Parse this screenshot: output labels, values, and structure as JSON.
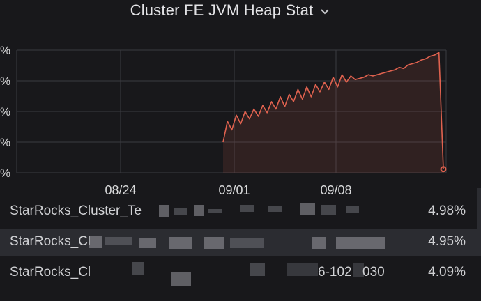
{
  "panel": {
    "title": "Cluster FE JVM Heap Stat",
    "menu_icon": "chevron-down-icon"
  },
  "chart_data": {
    "type": "area",
    "title": "Cluster FE JVM Heap Stat",
    "x_ticks": [
      "08/24",
      "09/01",
      "09/08"
    ],
    "y_ticks": [
      "%",
      "%",
      "%",
      "%",
      "%"
    ],
    "series": [
      {
        "color": "#e0624f",
        "x": [
          0,
          2,
          4,
          6,
          8,
          10,
          12,
          14,
          16,
          18,
          20,
          22,
          24,
          26,
          28,
          30,
          32,
          34,
          36,
          38,
          40,
          42,
          44,
          46,
          48,
          50,
          52,
          54,
          56,
          58,
          60,
          62,
          64,
          66,
          68,
          70,
          72,
          74,
          76,
          78,
          80,
          82,
          84,
          86,
          88,
          90,
          92,
          94,
          96,
          98,
          100
        ],
        "y": [
          0.25,
          0.42,
          0.35,
          0.47,
          0.4,
          0.5,
          0.44,
          0.52,
          0.46,
          0.55,
          0.49,
          0.58,
          0.52,
          0.62,
          0.54,
          0.64,
          0.58,
          0.68,
          0.6,
          0.7,
          0.62,
          0.72,
          0.66,
          0.74,
          0.68,
          0.78,
          0.7,
          0.8,
          0.74,
          0.79,
          0.76,
          0.77,
          0.78,
          0.8,
          0.79,
          0.8,
          0.81,
          0.82,
          0.83,
          0.84,
          0.86,
          0.85,
          0.88,
          0.89,
          0.9,
          0.92,
          0.93,
          0.95,
          0.96,
          0.98,
          0.03
        ]
      }
    ]
  },
  "legend": {
    "rows": [
      {
        "name": "StarRocks_Cluster_Te",
        "value": "4.98%"
      },
      {
        "name": "StarRocks_Cl",
        "value": "4.95%"
      },
      {
        "name": "StarRocks_Cl",
        "value": "4.09%"
      }
    ],
    "fragment_text": "6-102",
    "fragment_text_2": "030"
  }
}
